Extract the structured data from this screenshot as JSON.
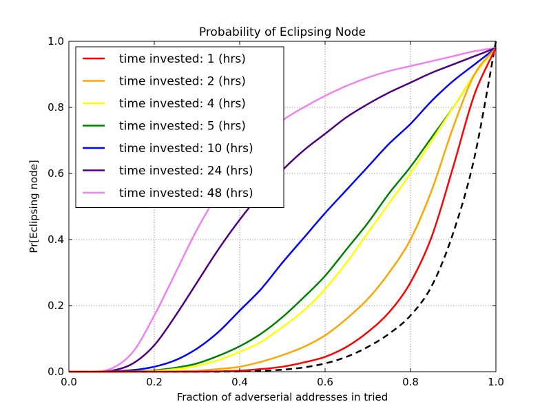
{
  "chart_data": {
    "type": "line",
    "title": "Probability of Eclipsing Node",
    "xlabel": "Fraction of adverserial addresses in tried",
    "ylabel": "Pr[Eclipsing node]",
    "xlim": [
      0.0,
      1.0
    ],
    "ylim": [
      0.0,
      1.0
    ],
    "xticks": [
      "0.0",
      "0.2",
      "0.4",
      "0.6",
      "0.8",
      "1.0"
    ],
    "yticks": [
      "0.0",
      "0.2",
      "0.4",
      "0.6",
      "0.8",
      "1.0"
    ],
    "grid": true,
    "legend_position": "top-left",
    "x": [
      0.0,
      0.05,
      0.1,
      0.15,
      0.2,
      0.25,
      0.3,
      0.35,
      0.4,
      0.45,
      0.5,
      0.55,
      0.6,
      0.65,
      0.7,
      0.75,
      0.8,
      0.85,
      0.9,
      0.95,
      1.0
    ],
    "series": [
      {
        "name": "time invested: 1 (hrs)",
        "color": "#ff0000",
        "style": "solid",
        "values": [
          0.0,
          0.0,
          0.0,
          0.0,
          0.0,
          0.0,
          0.0,
          0.001,
          0.003,
          0.008,
          0.015,
          0.028,
          0.045,
          0.075,
          0.12,
          0.18,
          0.27,
          0.41,
          0.62,
          0.84,
          0.98
        ]
      },
      {
        "name": "time invested: 2 (hrs)",
        "color": "#ffa500",
        "style": "solid",
        "values": [
          0.0,
          0.0,
          0.0,
          0.0,
          0.0,
          0.001,
          0.003,
          0.008,
          0.015,
          0.03,
          0.05,
          0.075,
          0.11,
          0.16,
          0.22,
          0.3,
          0.4,
          0.55,
          0.74,
          0.9,
          0.98
        ]
      },
      {
        "name": "time invested: 4 (hrs)",
        "color": "#ffff00",
        "style": "solid",
        "values": [
          0.0,
          0.0,
          0.0,
          0.0,
          0.002,
          0.008,
          0.018,
          0.035,
          0.06,
          0.09,
          0.135,
          0.185,
          0.25,
          0.33,
          0.42,
          0.51,
          0.6,
          0.7,
          0.8,
          0.9,
          0.98
        ]
      },
      {
        "name": "time invested: 5 (hrs)",
        "color": "#008000",
        "style": "solid",
        "values": [
          0.0,
          0.0,
          0.0,
          0.001,
          0.004,
          0.012,
          0.025,
          0.048,
          0.077,
          0.115,
          0.165,
          0.225,
          0.29,
          0.37,
          0.45,
          0.54,
          0.62,
          0.71,
          0.8,
          0.9,
          0.98
        ]
      },
      {
        "name": "time invested: 10 (hrs)",
        "color": "#0000ff",
        "style": "solid",
        "values": [
          0.0,
          0.0,
          0.001,
          0.005,
          0.015,
          0.035,
          0.07,
          0.12,
          0.185,
          0.25,
          0.33,
          0.405,
          0.48,
          0.55,
          0.62,
          0.69,
          0.75,
          0.82,
          0.88,
          0.93,
          0.98
        ]
      },
      {
        "name": "time invested: 24 (hrs)",
        "color": "#4b0082",
        "style": "solid",
        "values": [
          0.0,
          0.0,
          0.003,
          0.025,
          0.08,
          0.17,
          0.27,
          0.37,
          0.46,
          0.54,
          0.61,
          0.67,
          0.72,
          0.77,
          0.81,
          0.845,
          0.875,
          0.905,
          0.93,
          0.955,
          0.98
        ]
      },
      {
        "name": "time invested: 48 (hrs)",
        "color": "#ee82ee",
        "style": "solid",
        "values": [
          0.0,
          0.0,
          0.01,
          0.06,
          0.17,
          0.3,
          0.43,
          0.54,
          0.63,
          0.7,
          0.76,
          0.8,
          0.835,
          0.865,
          0.89,
          0.91,
          0.925,
          0.94,
          0.955,
          0.97,
          0.98
        ]
      },
      {
        "color": "#000000",
        "style": "dashed",
        "values": [
          0.0,
          0.0,
          0.0,
          0.0,
          0.0,
          0.0,
          0.0,
          0.0,
          0.001,
          0.003,
          0.006,
          0.013,
          0.025,
          0.045,
          0.075,
          0.115,
          0.17,
          0.26,
          0.42,
          0.65,
          1.0
        ]
      }
    ]
  }
}
